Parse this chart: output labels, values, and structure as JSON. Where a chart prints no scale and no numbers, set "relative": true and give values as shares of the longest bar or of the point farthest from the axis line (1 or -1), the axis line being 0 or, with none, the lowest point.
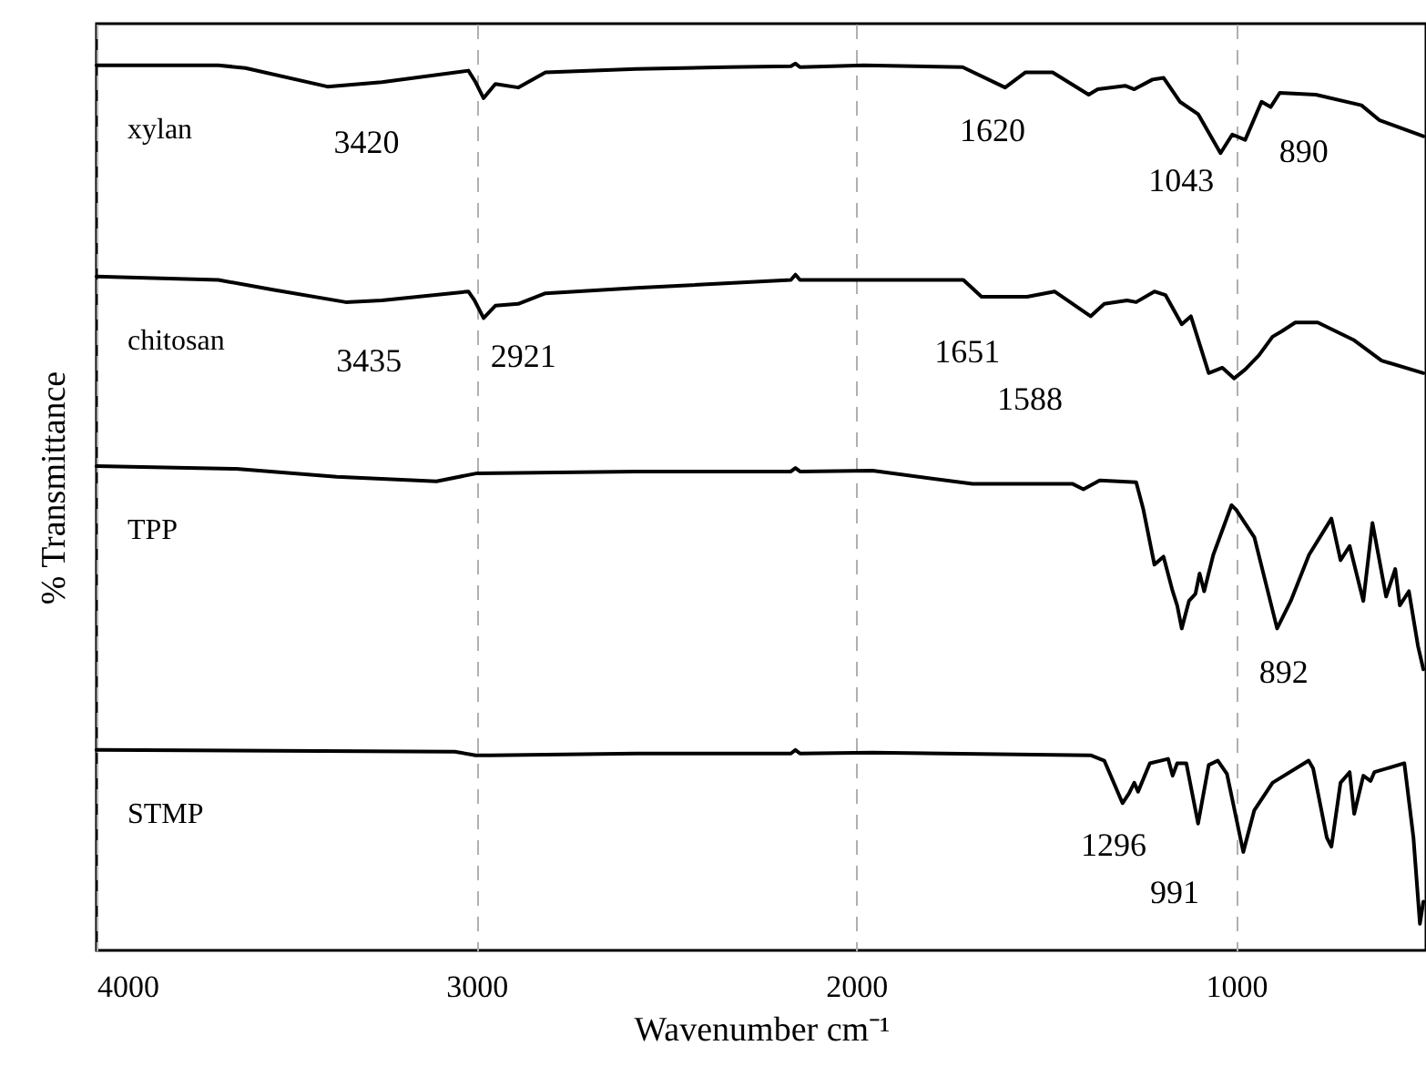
{
  "chart_data": {
    "type": "line",
    "xlabel": "Wavenumber cm⁻¹",
    "ylabel": "% Transmittance",
    "relative": true,
    "xlim": [
      4000,
      500
    ],
    "xticks": [
      4000,
      3000,
      2000,
      1000
    ],
    "grid": "x",
    "line_style": "solid",
    "series": [
      {
        "name": "xylan",
        "color": "#000000",
        "x": [
          4000,
          3679,
          3608,
          3392,
          3249,
          3021,
          3002,
          2981,
          2950,
          2890,
          2818,
          2579,
          2340,
          2172,
          2160,
          2148,
          1980,
          1720,
          1608,
          1555,
          1483,
          1388,
          1364,
          1292,
          1268,
          1220,
          1191,
          1148,
          1100,
          1041,
          1010,
          976,
          933,
          909,
          885,
          790,
          670,
          622,
          507
        ],
        "values": [
          0.998,
          0.998,
          0.995,
          0.974,
          0.979,
          0.992,
          0.979,
          0.961,
          0.977,
          0.973,
          0.99,
          0.994,
          0.996,
          0.997,
          1.0,
          0.996,
          0.998,
          0.996,
          0.973,
          0.99,
          0.99,
          0.965,
          0.971,
          0.975,
          0.971,
          0.982,
          0.984,
          0.957,
          0.943,
          0.899,
          0.92,
          0.914,
          0.957,
          0.951,
          0.967,
          0.965,
          0.953,
          0.936,
          0.918
        ]
      },
      {
        "name": "chitosan",
        "color": "#000000",
        "x": [
          4000,
          3679,
          3536,
          3344,
          3249,
          3021,
          3005,
          2981,
          2950,
          2890,
          2818,
          2579,
          2172,
          2160,
          2148,
          1718,
          1670,
          1622,
          1550,
          1478,
          1383,
          1347,
          1287,
          1263,
          1215,
          1186,
          1143,
          1119,
          1072,
          1036,
          1005,
          976,
          940,
          904,
          880,
          844,
          785,
          689,
          617,
          507
        ],
        "values": [
          0.76,
          0.756,
          0.745,
          0.731,
          0.733,
          0.743,
          0.733,
          0.713,
          0.727,
          0.729,
          0.741,
          0.747,
          0.756,
          0.762,
          0.756,
          0.756,
          0.737,
          0.737,
          0.737,
          0.743,
          0.715,
          0.729,
          0.733,
          0.731,
          0.743,
          0.739,
          0.706,
          0.715,
          0.651,
          0.657,
          0.645,
          0.655,
          0.671,
          0.692,
          0.698,
          0.708,
          0.708,
          0.688,
          0.665,
          0.651
        ]
      },
      {
        "name": "TPP",
        "color": "#000000",
        "x": [
          4000,
          3632,
          3368,
          3105,
          2998,
          2579,
          2172,
          2160,
          2148,
          1957,
          1694,
          1430,
          1402,
          1359,
          1263,
          1244,
          1215,
          1191,
          1167,
          1155,
          1143,
          1124,
          1107,
          1096,
          1084,
          1060,
          1012,
          1000,
          952,
          892,
          856,
          808,
          749,
          725,
          701,
          665,
          641,
          605,
          581,
          569,
          545,
          521,
          507
        ],
        "values": [
          0.546,
          0.543,
          0.534,
          0.529,
          0.538,
          0.54,
          0.54,
          0.544,
          0.54,
          0.541,
          0.526,
          0.526,
          0.52,
          0.53,
          0.528,
          0.497,
          0.435,
          0.444,
          0.405,
          0.389,
          0.363,
          0.394,
          0.402,
          0.425,
          0.405,
          0.446,
          0.502,
          0.497,
          0.466,
          0.363,
          0.394,
          0.446,
          0.487,
          0.44,
          0.456,
          0.394,
          0.482,
          0.399,
          0.43,
          0.389,
          0.405,
          0.343,
          0.317
        ]
      },
      {
        "name": "STMP",
        "color": "#000000",
        "x": [
          4000,
          3057,
          3002,
          2962,
          2579,
          2172,
          2160,
          2148,
          1957,
          1383,
          1347,
          1299,
          1282,
          1268,
          1258,
          1227,
          1179,
          1167,
          1155,
          1131,
          1100,
          1072,
          1048,
          1024,
          981,
          952,
          904,
          809,
          797,
          761,
          749,
          725,
          701,
          689,
          665,
          646,
          636,
          557,
          533,
          516,
          507
        ],
        "values": [
          0.226,
          0.224,
          0.22,
          0.22,
          0.222,
          0.222,
          0.226,
          0.222,
          0.223,
          0.22,
          0.214,
          0.166,
          0.177,
          0.189,
          0.179,
          0.211,
          0.216,
          0.197,
          0.211,
          0.211,
          0.143,
          0.209,
          0.214,
          0.199,
          0.111,
          0.158,
          0.189,
          0.214,
          0.205,
          0.127,
          0.117,
          0.189,
          0.201,
          0.154,
          0.197,
          0.191,
          0.201,
          0.211,
          0.127,
          0.03,
          0.055
        ]
      }
    ],
    "annotations": [
      "3420",
      "1620",
      "1043",
      "890",
      "3435",
      "2921",
      "1651",
      "1588",
      "892",
      "1296",
      "991"
    ]
  }
}
